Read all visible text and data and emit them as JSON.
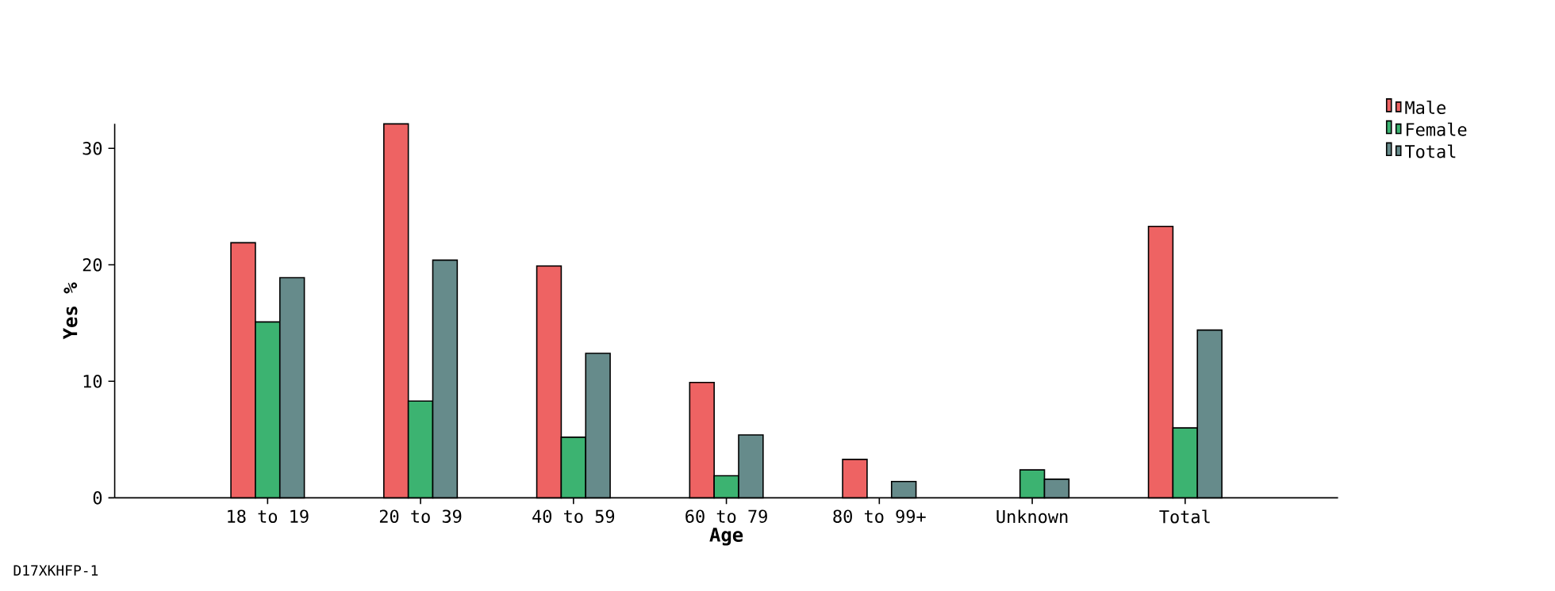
{
  "chart_data": {
    "type": "bar",
    "xlabel": "Age",
    "ylabel": "Yes %",
    "categories": [
      "18 to 19",
      "20 to 39",
      "40 to 59",
      "60 to 79",
      "80 to 99+",
      "Unknown",
      "Total"
    ],
    "series": [
      {
        "name": "Male",
        "color": "#ee6363",
        "values": [
          21.9,
          32.1,
          19.9,
          9.9,
          3.3,
          null,
          23.3
        ]
      },
      {
        "name": "Female",
        "color": "#3cb371",
        "values": [
          15.1,
          8.3,
          5.2,
          1.9,
          null,
          2.4,
          6.0
        ]
      },
      {
        "name": "Total",
        "color": "#668b8b",
        "values": [
          18.9,
          20.4,
          12.4,
          5.4,
          1.4,
          1.6,
          14.4
        ]
      }
    ],
    "ylim": [
      0,
      32.1
    ],
    "yticks": [
      0,
      10,
      20,
      30
    ],
    "grid": false,
    "legend": "top right",
    "annotations": [
      "D17XKHFP-1"
    ]
  }
}
